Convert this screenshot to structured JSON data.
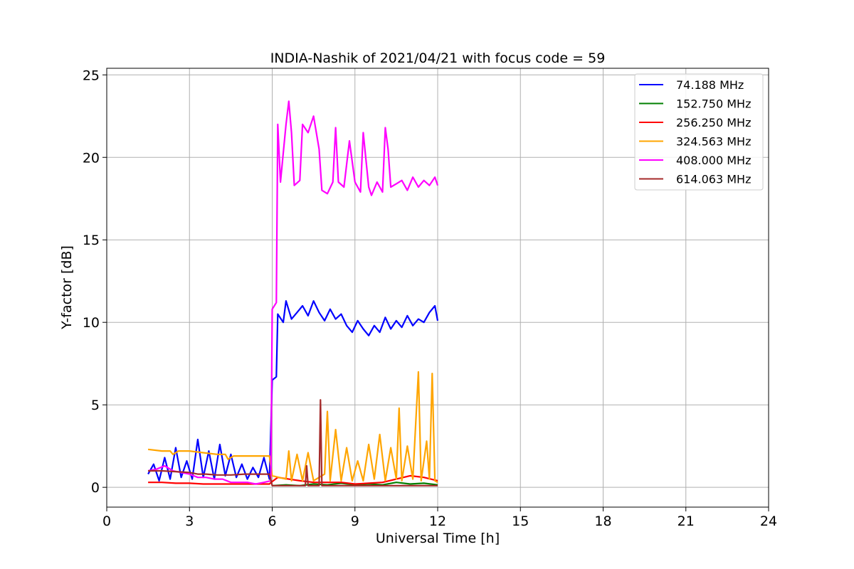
{
  "chart_data": {
    "type": "line",
    "title": "INDIA-Nashik of 2021/04/21 with focus code = 59",
    "xlabel": "Universal Time [h]",
    "ylabel": "Y-factor [dB]",
    "xlim": [
      0,
      24
    ],
    "ylim": [
      -1.2,
      25.4
    ],
    "xticks": [
      0,
      3,
      6,
      9,
      12,
      15,
      18,
      21,
      24
    ],
    "yticks": [
      0,
      5,
      10,
      15,
      20,
      25
    ],
    "grid": true,
    "legend_position": "upper right",
    "series": [
      {
        "name": " 74.188 MHz",
        "color": "#0000ff",
        "points": [
          [
            1.5,
            0.8
          ],
          [
            1.7,
            1.4
          ],
          [
            1.9,
            0.4
          ],
          [
            2.1,
            1.8
          ],
          [
            2.3,
            0.5
          ],
          [
            2.5,
            2.4
          ],
          [
            2.7,
            0.6
          ],
          [
            2.9,
            1.6
          ],
          [
            3.1,
            0.5
          ],
          [
            3.3,
            2.9
          ],
          [
            3.5,
            0.6
          ],
          [
            3.7,
            2.2
          ],
          [
            3.9,
            0.5
          ],
          [
            4.1,
            2.6
          ],
          [
            4.3,
            0.7
          ],
          [
            4.5,
            2.0
          ],
          [
            4.7,
            0.6
          ],
          [
            4.9,
            1.4
          ],
          [
            5.1,
            0.5
          ],
          [
            5.3,
            1.2
          ],
          [
            5.5,
            0.6
          ],
          [
            5.7,
            1.8
          ],
          [
            5.9,
            0.5
          ],
          [
            6.0,
            6.5
          ],
          [
            6.15,
            6.7
          ],
          [
            6.2,
            10.5
          ],
          [
            6.4,
            10.0
          ],
          [
            6.5,
            11.3
          ],
          [
            6.7,
            10.2
          ],
          [
            6.9,
            10.6
          ],
          [
            7.1,
            11.0
          ],
          [
            7.3,
            10.4
          ],
          [
            7.5,
            11.3
          ],
          [
            7.7,
            10.6
          ],
          [
            7.9,
            10.1
          ],
          [
            8.1,
            10.8
          ],
          [
            8.3,
            10.2
          ],
          [
            8.5,
            10.5
          ],
          [
            8.7,
            9.8
          ],
          [
            8.9,
            9.4
          ],
          [
            9.1,
            10.1
          ],
          [
            9.3,
            9.6
          ],
          [
            9.5,
            9.2
          ],
          [
            9.7,
            9.8
          ],
          [
            9.9,
            9.4
          ],
          [
            10.1,
            10.3
          ],
          [
            10.3,
            9.6
          ],
          [
            10.5,
            10.1
          ],
          [
            10.7,
            9.7
          ],
          [
            10.9,
            10.4
          ],
          [
            11.1,
            9.8
          ],
          [
            11.3,
            10.2
          ],
          [
            11.5,
            10.0
          ],
          [
            11.7,
            10.6
          ],
          [
            11.9,
            11.0
          ],
          [
            12.0,
            10.1
          ]
        ]
      },
      {
        "name": "152.750 MHz",
        "color": "#008000",
        "points": [
          [
            6.0,
            0.1
          ],
          [
            6.5,
            0.15
          ],
          [
            7.0,
            0.1
          ],
          [
            7.5,
            0.2
          ],
          [
            8.0,
            0.15
          ],
          [
            8.5,
            0.25
          ],
          [
            9.0,
            0.15
          ],
          [
            9.5,
            0.2
          ],
          [
            10.0,
            0.15
          ],
          [
            10.5,
            0.3
          ],
          [
            11.0,
            0.2
          ],
          [
            11.5,
            0.25
          ],
          [
            12.0,
            0.15
          ]
        ]
      },
      {
        "name": "256.250 MHz",
        "color": "#ff0000",
        "points": [
          [
            1.5,
            0.3
          ],
          [
            2.0,
            0.3
          ],
          [
            2.5,
            0.25
          ],
          [
            3.0,
            0.25
          ],
          [
            3.5,
            0.2
          ],
          [
            4.0,
            0.2
          ],
          [
            4.5,
            0.2
          ],
          [
            5.0,
            0.2
          ],
          [
            5.5,
            0.2
          ],
          [
            5.9,
            0.2
          ],
          [
            6.0,
            0.35
          ],
          [
            6.2,
            0.6
          ],
          [
            6.6,
            0.5
          ],
          [
            7.0,
            0.4
          ],
          [
            7.5,
            0.3
          ],
          [
            8.0,
            0.3
          ],
          [
            8.5,
            0.3
          ],
          [
            9.0,
            0.2
          ],
          [
            9.5,
            0.25
          ],
          [
            10.0,
            0.3
          ],
          [
            10.5,
            0.5
          ],
          [
            11.0,
            0.7
          ],
          [
            11.5,
            0.6
          ],
          [
            12.0,
            0.4
          ]
        ]
      },
      {
        "name": "324.563 MHz",
        "color": "#ffa500",
        "points": [
          [
            1.5,
            2.3
          ],
          [
            2.0,
            2.2
          ],
          [
            2.3,
            2.2
          ],
          [
            2.4,
            2.0
          ],
          [
            2.6,
            2.2
          ],
          [
            3.0,
            2.2
          ],
          [
            3.5,
            2.1
          ],
          [
            4.0,
            2.0
          ],
          [
            4.3,
            2.0
          ],
          [
            4.4,
            1.7
          ],
          [
            4.6,
            1.9
          ],
          [
            5.0,
            1.9
          ],
          [
            5.5,
            1.9
          ],
          [
            5.9,
            1.9
          ],
          [
            6.0,
            0.7
          ],
          [
            6.5,
            0.5
          ],
          [
            6.6,
            2.2
          ],
          [
            6.7,
            0.4
          ],
          [
            6.9,
            2.0
          ],
          [
            7.1,
            0.4
          ],
          [
            7.3,
            2.1
          ],
          [
            7.5,
            0.4
          ],
          [
            7.9,
            0.8
          ],
          [
            8.0,
            4.6
          ],
          [
            8.1,
            0.4
          ],
          [
            8.3,
            3.5
          ],
          [
            8.5,
            0.4
          ],
          [
            8.7,
            2.4
          ],
          [
            8.9,
            0.4
          ],
          [
            9.1,
            1.6
          ],
          [
            9.3,
            0.4
          ],
          [
            9.5,
            2.6
          ],
          [
            9.7,
            0.5
          ],
          [
            9.9,
            3.2
          ],
          [
            10.1,
            0.4
          ],
          [
            10.3,
            2.4
          ],
          [
            10.5,
            0.5
          ],
          [
            10.6,
            4.8
          ],
          [
            10.7,
            0.4
          ],
          [
            10.9,
            2.5
          ],
          [
            11.1,
            0.5
          ],
          [
            11.3,
            7.0
          ],
          [
            11.4,
            0.4
          ],
          [
            11.6,
            2.8
          ],
          [
            11.7,
            0.5
          ],
          [
            11.8,
            6.9
          ],
          [
            11.9,
            0.4
          ],
          [
            12.0,
            0.3
          ]
        ]
      },
      {
        "name": "408.000 MHz",
        "color": "#ff00ff",
        "points": [
          [
            1.5,
            1.0
          ],
          [
            1.8,
            1.1
          ],
          [
            2.1,
            1.3
          ],
          [
            2.4,
            1.0
          ],
          [
            2.7,
            0.9
          ],
          [
            3.0,
            0.8
          ],
          [
            3.3,
            0.6
          ],
          [
            3.6,
            0.6
          ],
          [
            3.9,
            0.5
          ],
          [
            4.2,
            0.5
          ],
          [
            4.5,
            0.3
          ],
          [
            4.8,
            0.3
          ],
          [
            5.1,
            0.3
          ],
          [
            5.4,
            0.2
          ],
          [
            5.7,
            0.3
          ],
          [
            5.95,
            0.4
          ],
          [
            6.0,
            10.8
          ],
          [
            6.15,
            11.2
          ],
          [
            6.2,
            22.0
          ],
          [
            6.3,
            18.5
          ],
          [
            6.5,
            22.0
          ],
          [
            6.6,
            23.4
          ],
          [
            6.7,
            21.5
          ],
          [
            6.8,
            18.3
          ],
          [
            7.0,
            18.6
          ],
          [
            7.1,
            22.0
          ],
          [
            7.3,
            21.5
          ],
          [
            7.5,
            22.5
          ],
          [
            7.7,
            20.5
          ],
          [
            7.8,
            18.0
          ],
          [
            8.0,
            17.8
          ],
          [
            8.2,
            18.5
          ],
          [
            8.3,
            21.8
          ],
          [
            8.4,
            18.5
          ],
          [
            8.6,
            18.2
          ],
          [
            8.8,
            21.0
          ],
          [
            9.0,
            18.5
          ],
          [
            9.2,
            17.9
          ],
          [
            9.3,
            21.5
          ],
          [
            9.5,
            18.2
          ],
          [
            9.6,
            17.7
          ],
          [
            9.8,
            18.5
          ],
          [
            10.0,
            17.9
          ],
          [
            10.1,
            21.8
          ],
          [
            10.2,
            20.5
          ],
          [
            10.3,
            18.2
          ],
          [
            10.5,
            18.4
          ],
          [
            10.7,
            18.6
          ],
          [
            10.9,
            18.0
          ],
          [
            11.1,
            18.8
          ],
          [
            11.3,
            18.2
          ],
          [
            11.5,
            18.6
          ],
          [
            11.7,
            18.3
          ],
          [
            11.9,
            18.8
          ],
          [
            12.0,
            18.3
          ]
        ]
      },
      {
        "name": "614.063 MHz",
        "color": "#a52a2a",
        "points": [
          [
            1.5,
            1.0
          ],
          [
            2.0,
            1.0
          ],
          [
            2.5,
            0.95
          ],
          [
            3.0,
            0.9
          ],
          [
            3.3,
            0.8
          ],
          [
            3.6,
            0.8
          ],
          [
            4.0,
            0.75
          ],
          [
            4.5,
            0.75
          ],
          [
            5.0,
            0.8
          ],
          [
            5.5,
            0.8
          ],
          [
            5.9,
            0.8
          ],
          [
            6.0,
            0.1
          ],
          [
            6.5,
            0.1
          ],
          [
            7.0,
            0.1
          ],
          [
            7.2,
            0.1
          ],
          [
            7.25,
            1.3
          ],
          [
            7.3,
            0.1
          ],
          [
            7.7,
            0.1
          ],
          [
            7.75,
            5.3
          ],
          [
            7.8,
            0.1
          ],
          [
            8.5,
            0.1
          ],
          [
            9.0,
            0.1
          ],
          [
            9.5,
            0.1
          ],
          [
            10.0,
            0.1
          ],
          [
            10.5,
            0.1
          ],
          [
            11.0,
            0.1
          ],
          [
            11.5,
            0.1
          ],
          [
            12.0,
            0.1
          ]
        ]
      }
    ]
  }
}
